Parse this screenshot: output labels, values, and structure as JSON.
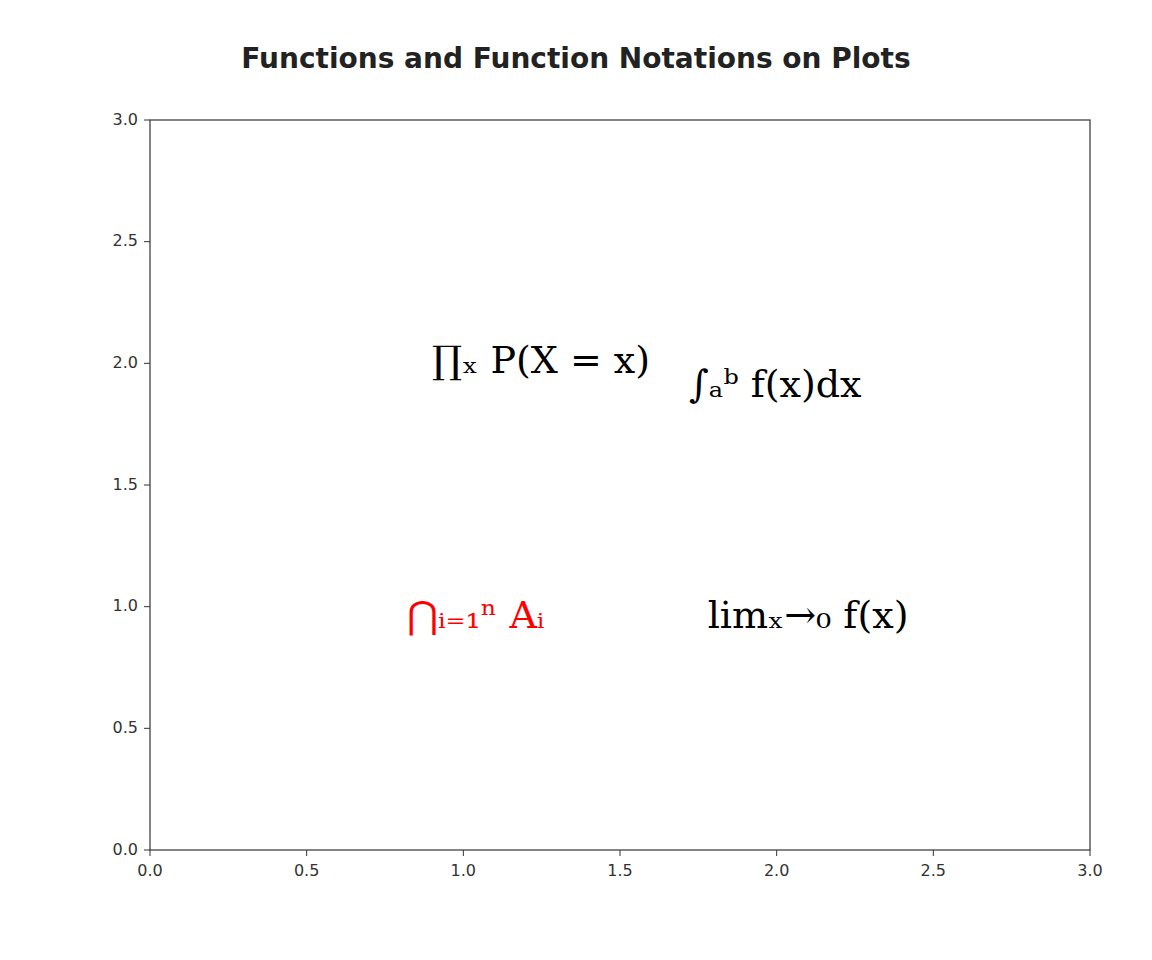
{
  "chart_data": {
    "type": "text",
    "title": "Functions and Function Notations on Plots",
    "xlim": [
      0,
      3
    ],
    "ylim": [
      0,
      3
    ],
    "xticks": [
      {
        "value": 0.0,
        "label": "0.0"
      },
      0.5,
      {
        "value": 1.0,
        "label": "1.0"
      },
      1.5,
      {
        "value": 2.0,
        "label": "2.0"
      },
      2.5,
      {
        "value": 3.0,
        "label": "3.0"
      }
    ],
    "yticks": [
      {
        "value": 0.0,
        "label": "0.0"
      },
      0.5,
      {
        "value": 1.0,
        "label": "1.0"
      },
      1.5,
      {
        "value": 2.0,
        "label": "2.0"
      },
      2.5,
      {
        "value": 3.0,
        "label": "3.0"
      }
    ],
    "grid": false,
    "annotations": [
      {
        "text": "∏ₓ P(X = x)",
        "x": 0.9,
        "y": 2.0,
        "color": "black"
      },
      {
        "text": "∫ₐᵇ f(x)dx",
        "x": 1.72,
        "y": 1.9,
        "color": "black"
      },
      {
        "text": "⋂ᵢ₌₁ⁿ Aᵢ",
        "x": 0.82,
        "y": 0.95,
        "color": "red"
      },
      {
        "text": "limₓ→₀ f(x)",
        "x": 1.78,
        "y": 0.95,
        "color": "black"
      }
    ]
  }
}
